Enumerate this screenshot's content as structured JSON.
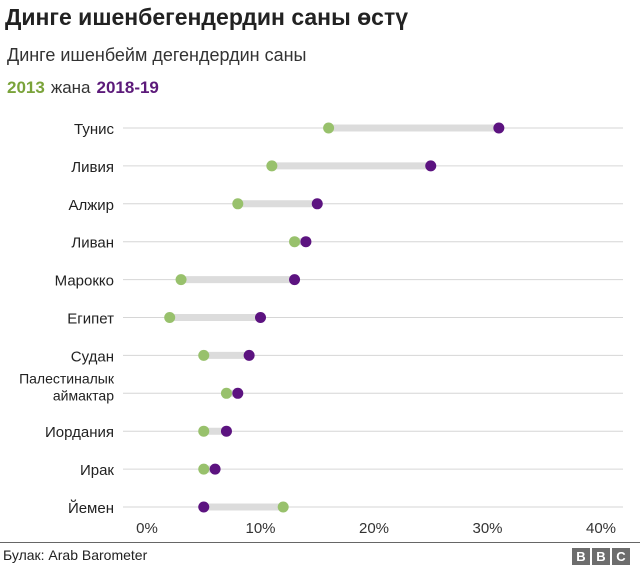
{
  "chart_data": {
    "type": "dumbbell",
    "title": "Динге ишенбегендердин саны өстү",
    "subtitle": "Динге ишенбейм дегендердин саны",
    "legend": {
      "series_a": "2013",
      "joiner": "жана",
      "series_b": "2018-19"
    },
    "categories": [
      [
        "Тунис"
      ],
      [
        "Ливия"
      ],
      [
        "Алжир"
      ],
      [
        "Ливан"
      ],
      [
        "Марокко"
      ],
      [
        "Египет"
      ],
      [
        "Судан"
      ],
      [
        "Палестиналык",
        "аймактар"
      ],
      [
        "Иордания"
      ],
      [
        "Ирак"
      ],
      [
        "Йемен"
      ]
    ],
    "series": [
      {
        "name": "2013",
        "color": "#98c16c",
        "values": [
          16,
          11,
          8,
          13,
          3,
          2,
          5,
          7,
          5,
          5,
          12
        ]
      },
      {
        "name": "2018-19",
        "color": "#5c1380",
        "values": [
          31,
          25,
          15,
          14,
          13,
          10,
          9,
          8,
          7,
          6,
          5
        ]
      }
    ],
    "xlim": [
      0,
      40
    ],
    "xticks": [
      "0%",
      "10%",
      "20%",
      "30%",
      "40%"
    ],
    "xtick_values": [
      0,
      10,
      20,
      30,
      40
    ]
  },
  "footer": {
    "source": "Булак: Arab Barometer",
    "logo": [
      "B",
      "B",
      "C"
    ]
  }
}
